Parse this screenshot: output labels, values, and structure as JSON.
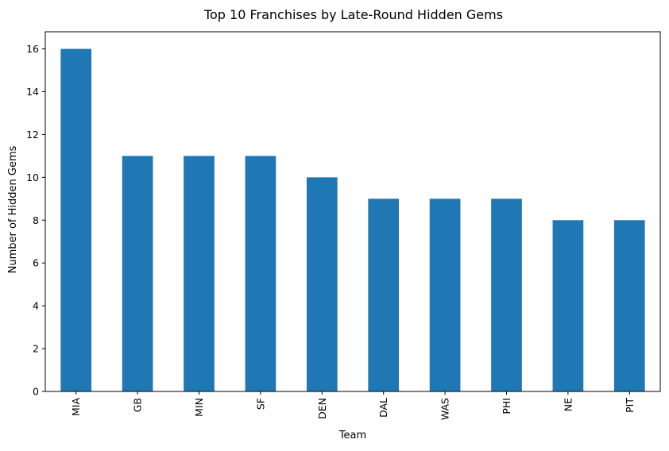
{
  "chart_data": {
    "type": "bar",
    "title": "Top 10 Franchises by Late-Round Hidden Gems",
    "xlabel": "Team",
    "ylabel": "Number of Hidden Gems",
    "categories": [
      "MIA",
      "GB",
      "MIN",
      "SF",
      "DEN",
      "DAL",
      "WAS",
      "PHI",
      "NE",
      "PIT"
    ],
    "values": [
      16,
      11,
      11,
      11,
      10,
      9,
      9,
      9,
      8,
      8
    ],
    "ylim": [
      0,
      16.8
    ],
    "yticks": [
      "0",
      "2",
      "4",
      "6",
      "8",
      "10",
      "12",
      "14",
      "16"
    ],
    "grid": false,
    "legend": "none",
    "bar_color": "#1f77b4",
    "axis_color": "#000000"
  }
}
